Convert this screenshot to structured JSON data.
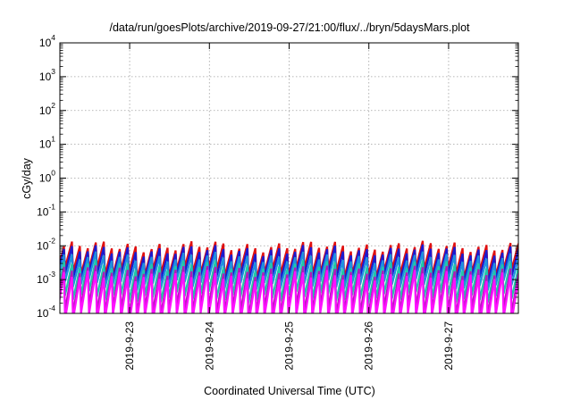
{
  "chart_data": {
    "type": "line",
    "title": "/data/run/goesPlots/archive/2019-09-27/21:00/flux/../bryn/5daysMars.plot",
    "xlabel": "Coordinated Universal Time (UTC)",
    "ylabel": "cGy/day",
    "x_range": [
      "2019-09-22T03:00",
      "2019-09-27T21:00"
    ],
    "x_ticks": [
      "2019-9-23",
      "2019-9-24",
      "2019-9-25",
      "2019-9-26",
      "2019-9-27"
    ],
    "y_scale": "log",
    "ylim": [
      0.0001,
      10000
    ],
    "y_tick_exponents": [
      -4,
      -3,
      -2,
      -1,
      0,
      1,
      2,
      3,
      4
    ],
    "grid": true,
    "legend": "none",
    "sawtooth_period_hours": 2.4,
    "series": [
      {
        "color": "#e01010",
        "peak": 0.0095,
        "trough": 0.0016
      },
      {
        "color": "#1a1ad0",
        "peak": 0.0072,
        "trough": 0.0011
      },
      {
        "color": "#1e90e0",
        "peak": 0.0045,
        "trough": 0.0007
      },
      {
        "color": "#20c8a8",
        "peak": 0.0026,
        "trough": 0.0003
      },
      {
        "color": "#b01ab8",
        "peak": 0.0018,
        "trough": 0.00012
      },
      {
        "color": "#ff10ff",
        "peak": 0.0013,
        "trough": 7e-05
      }
    ]
  }
}
